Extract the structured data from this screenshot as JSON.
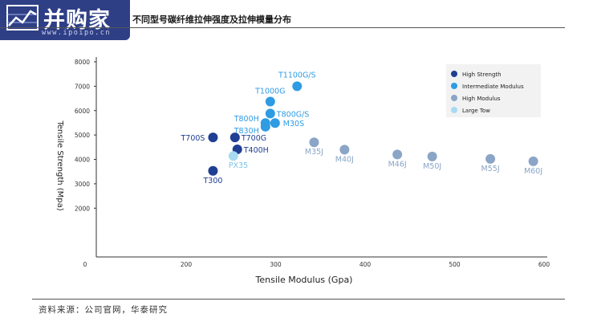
{
  "header": {
    "logo_text": "并购家",
    "logo_url": "www.ipoipo.cn",
    "title": "不同型号碳纤维拉伸强度及拉伸模量分布"
  },
  "footer": {
    "source": "资料来源：公司官网，华泰研究"
  },
  "chart_data": {
    "type": "scatter",
    "xlabel": "Tensile Modulus (Gpa)",
    "ylabel": "Tensile Strength (Mpa)",
    "xlim": [
      0,
      600
    ],
    "ylim": [
      0,
      8000
    ],
    "x_ticks": [
      0,
      200,
      300,
      400,
      500,
      600
    ],
    "y_ticks": [
      2000,
      3000,
      4000,
      5000,
      6000,
      7000,
      8000
    ],
    "grid": false,
    "legend_position": "top-right",
    "series": [
      {
        "name": "High Strength",
        "color": "#1f3f93",
        "points": [
          {
            "label": "T300",
            "x": 230,
            "y": 3530
          },
          {
            "label": "T700S",
            "x": 230,
            "y": 4900
          },
          {
            "label": "T700G",
            "x": 242,
            "y": 4900
          },
          {
            "label": "T400H",
            "x": 250,
            "y": 4410
          }
        ]
      },
      {
        "name": "Intermediate Modulus",
        "color": "#2f9be3",
        "points": [
          {
            "label": "T1100G/S",
            "x": 324,
            "y": 7000
          },
          {
            "label": "T1000G",
            "x": 294,
            "y": 6370
          },
          {
            "label": "T800G/S",
            "x": 294,
            "y": 5880
          },
          {
            "label": "M30S",
            "x": 294,
            "y": 5490
          },
          {
            "label": "T800H",
            "x": 294,
            "y": 5490
          },
          {
            "label": "T830H",
            "x": 294,
            "y": 5340
          }
        ]
      },
      {
        "name": "High Modulus",
        "color": "#8aa5c6",
        "points": [
          {
            "label": "M35J",
            "x": 343,
            "y": 4700
          },
          {
            "label": "M40J",
            "x": 377,
            "y": 4400
          },
          {
            "label": "M46J",
            "x": 436,
            "y": 4200
          },
          {
            "label": "M50J",
            "x": 475,
            "y": 4120
          },
          {
            "label": "M55J",
            "x": 540,
            "y": 4020
          },
          {
            "label": "M60J",
            "x": 588,
            "y": 3920
          }
        ]
      },
      {
        "name": "Large Tow",
        "color": "#a8daf2",
        "points": [
          {
            "label": "PX35",
            "x": 242,
            "y": 4140
          }
        ]
      }
    ]
  }
}
